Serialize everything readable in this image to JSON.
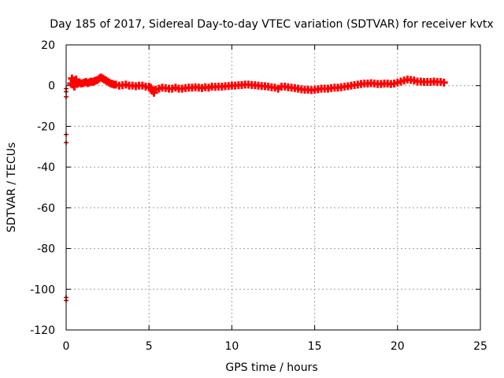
{
  "chart_data": {
    "type": "scatter",
    "title": "Day 185 of 2017, Sidereal Day-to-day VTEC variation (SDTVAR) for receiver kvtx",
    "xlabel": "GPS time / hours",
    "ylabel": "SDTVAR / TECUs",
    "xlim": [
      0,
      25
    ],
    "ylim": [
      -120,
      20
    ],
    "xticks": [
      0,
      5,
      10,
      15,
      20,
      25
    ],
    "yticks": [
      -120,
      -100,
      -80,
      -60,
      -40,
      -20,
      0,
      20
    ],
    "grid": true,
    "legend": "none",
    "marker_color": "#ff0000",
    "outlier_color": "#cc0000",
    "series": [
      {
        "marker": "plus",
        "x": [
          0.3,
          0.35,
          0.4,
          0.45,
          0.5,
          0.55,
          0.6,
          0.7,
          0.8,
          0.9,
          1.0,
          1.1,
          1.2,
          1.3,
          1.4,
          1.5,
          1.6,
          1.7,
          1.8,
          1.9,
          2.0,
          2.1,
          2.2,
          2.3,
          2.4,
          2.5,
          2.6,
          2.7,
          2.8,
          2.9,
          3.0,
          3.2,
          3.4,
          3.6,
          3.8,
          4.0,
          4.2,
          4.4,
          4.6,
          4.8,
          5.0,
          5.1,
          5.2,
          5.3,
          5.4,
          5.6,
          5.8,
          6.0,
          6.2,
          6.4,
          6.6,
          6.8,
          7.0,
          7.2,
          7.4,
          7.6,
          7.8,
          8.0,
          8.2,
          8.4,
          8.6,
          8.8,
          9.0,
          9.2,
          9.4,
          9.6,
          9.8,
          10.0,
          10.2,
          10.4,
          10.6,
          10.8,
          11.0,
          11.2,
          11.4,
          11.6,
          11.8,
          12.0,
          12.2,
          12.4,
          12.6,
          12.8,
          13.0,
          13.2,
          13.4,
          13.6,
          13.8,
          14.0,
          14.2,
          14.4,
          14.6,
          14.8,
          15.0,
          15.2,
          15.4,
          15.6,
          15.8,
          16.0,
          16.2,
          16.4,
          16.6,
          16.8,
          17.0,
          17.2,
          17.4,
          17.6,
          17.8,
          18.0,
          18.2,
          18.4,
          18.6,
          18.8,
          19.0,
          19.2,
          19.4,
          19.6,
          19.8,
          20.0,
          20.2,
          20.4,
          20.6,
          20.8,
          21.0,
          21.2,
          21.4,
          21.6,
          21.8,
          22.0,
          22.2,
          22.4,
          22.6,
          22.8
        ],
        "y": [
          1.0,
          3.5,
          0.5,
          2.5,
          -0.5,
          1.5,
          3.0,
          1.0,
          1.5,
          1.0,
          1.2,
          1.5,
          1.8,
          1.2,
          1.6,
          2.0,
          1.8,
          2.2,
          2.5,
          2.8,
          3.5,
          4.0,
          3.5,
          3.0,
          2.5,
          2.0,
          1.5,
          1.0,
          0.8,
          0.5,
          0.5,
          0.0,
          0.2,
          0.5,
          0.0,
          0.0,
          -0.3,
          0.0,
          0.0,
          -0.5,
          -0.5,
          -1.0,
          -2.5,
          -3.5,
          -2.0,
          -1.5,
          -1.0,
          -1.2,
          -1.5,
          -1.5,
          -1.0,
          -1.5,
          -1.5,
          -1.2,
          -1.0,
          -1.0,
          -0.8,
          -1.0,
          -1.2,
          -0.8,
          -1.0,
          -0.5,
          -0.6,
          -0.5,
          -0.5,
          -0.3,
          -0.2,
          0.0,
          0.0,
          0.2,
          0.3,
          0.5,
          0.5,
          0.3,
          0.2,
          0.0,
          -0.2,
          -0.3,
          -0.5,
          -0.8,
          -1.0,
          -1.5,
          -0.5,
          -0.5,
          -0.8,
          -1.0,
          -1.2,
          -1.5,
          -1.8,
          -2.0,
          -2.0,
          -2.2,
          -2.0,
          -1.8,
          -1.5,
          -1.5,
          -1.5,
          -1.2,
          -1.0,
          -1.0,
          -0.8,
          -0.5,
          -0.3,
          0.0,
          0.3,
          0.5,
          0.8,
          1.0,
          1.0,
          1.2,
          1.0,
          0.8,
          0.8,
          1.0,
          1.0,
          0.8,
          1.0,
          1.5,
          2.0,
          2.5,
          3.0,
          2.8,
          2.5,
          2.0,
          2.0,
          1.8,
          1.8,
          1.8,
          2.0,
          1.8,
          1.8,
          1.5
        ]
      },
      {
        "marker": "plus",
        "x": [
          0.0,
          0.0,
          0.0,
          0.0,
          0.0,
          0.0,
          0.0
        ],
        "y": [
          -1.5,
          -3.0,
          -5.5,
          -24.0,
          -28.0,
          -104.0,
          -105.5
        ]
      }
    ]
  }
}
